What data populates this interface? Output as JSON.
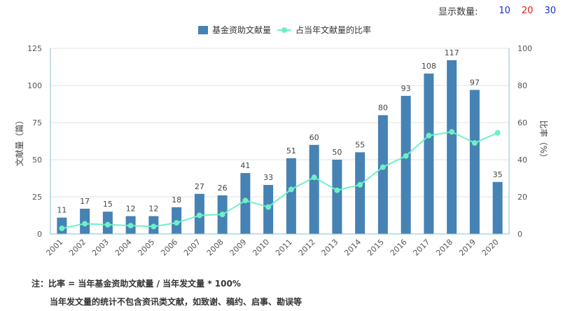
{
  "topbar": {
    "label": "显示数量:",
    "options": [
      {
        "value": "10",
        "color": "#1a2fcf"
      },
      {
        "value": "20",
        "color": "#e0201b"
      },
      {
        "value": "30",
        "color": "#1a2fcf"
      }
    ]
  },
  "notes": {
    "line1": "注：比率 = 当年基金资助文献量 / 当年发文量 * 100%",
    "line2": "当年发文量的统计不包含资讯类文献，如致谢、稿约、启事、勘误等"
  },
  "chart_data": {
    "type": "bar",
    "categories": [
      "2001",
      "2002",
      "2003",
      "2004",
      "2005",
      "2006",
      "2007",
      "2008",
      "2009",
      "2010",
      "2011",
      "2012",
      "2013",
      "2014",
      "2015",
      "2016",
      "2017",
      "2018",
      "2019",
      "2020"
    ],
    "series": [
      {
        "name": "基金资助文献量",
        "type": "bar",
        "axis": "left",
        "color": "#4682b4",
        "values": [
          11,
          17,
          15,
          12,
          12,
          18,
          27,
          26,
          41,
          33,
          51,
          60,
          50,
          55,
          80,
          93,
          108,
          117,
          97,
          35
        ]
      },
      {
        "name": "占当年文献量的比率",
        "type": "line",
        "axis": "right",
        "color": "#6ef0c6",
        "values": [
          3,
          5.5,
          5,
          4.5,
          4,
          6,
          10,
          10.5,
          18,
          14.5,
          24,
          30.5,
          23.5,
          26.5,
          36,
          42,
          53,
          55,
          49,
          54.5
        ]
      }
    ],
    "ylabel": "文献量（篇）",
    "y2label": "比率（%）",
    "ylim": [
      0,
      125
    ],
    "yticks": [
      0,
      25,
      50,
      75,
      100,
      125
    ],
    "y2lim": [
      0,
      100
    ],
    "y2ticks": [
      0,
      20,
      40,
      60,
      80,
      100
    ],
    "grid": true,
    "legend_position": "top-center"
  }
}
